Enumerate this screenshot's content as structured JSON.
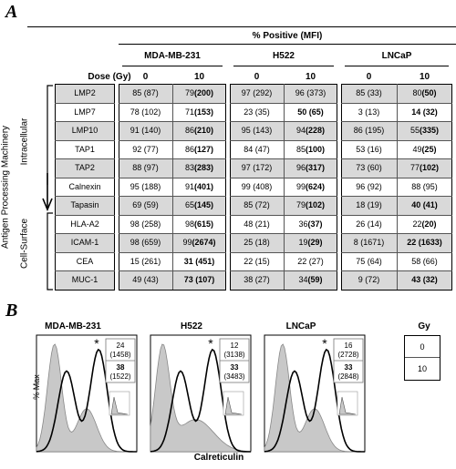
{
  "panel_a": {
    "label": "A",
    "header": "% Positive (MFI)",
    "dose_label": "Dose (Gy)",
    "cell_lines": [
      "MDA-MB-231",
      "H522",
      "LNCaP"
    ],
    "doses": [
      "0",
      "10"
    ],
    "side_label": "Antigen Processing Machinery",
    "group_labels": [
      "Intracellular",
      "Cell-Surface"
    ],
    "rows": [
      {
        "name": "LMP2",
        "shaded": true,
        "cells": [
          [
            "85 (87)",
            ""
          ],
          [
            "79 ",
            "(200)"
          ],
          [
            "97 (292)",
            ""
          ],
          [
            "96 (373)",
            ""
          ],
          [
            "85 (33)",
            ""
          ],
          [
            "80 ",
            "(50)"
          ]
        ]
      },
      {
        "name": "LMP7",
        "shaded": false,
        "cells": [
          [
            "78 (102)",
            ""
          ],
          [
            "71 ",
            "(153)"
          ],
          [
            "23 (35)",
            ""
          ],
          [
            "",
            "50 (65)"
          ],
          [
            "3 (13)",
            ""
          ],
          [
            "",
            "14 (32)"
          ]
        ]
      },
      {
        "name": "LMP10",
        "shaded": true,
        "cells": [
          [
            "91 (140)",
            ""
          ],
          [
            "86 ",
            "(210)"
          ],
          [
            "95 (143)",
            ""
          ],
          [
            "94 ",
            "(228)"
          ],
          [
            "86 (195)",
            ""
          ],
          [
            "55 ",
            "(335)"
          ]
        ]
      },
      {
        "name": "TAP1",
        "shaded": false,
        "cells": [
          [
            "92 (77)",
            ""
          ],
          [
            "86 ",
            "(127)"
          ],
          [
            "84 (47)",
            ""
          ],
          [
            "85 ",
            "(100)"
          ],
          [
            "53 (16)",
            ""
          ],
          [
            "49 ",
            "(25)"
          ]
        ]
      },
      {
        "name": "TAP2",
        "shaded": true,
        "cells": [
          [
            "88 (97)",
            ""
          ],
          [
            "83 ",
            "(283)"
          ],
          [
            "97 (172)",
            ""
          ],
          [
            "96 ",
            "(317)"
          ],
          [
            "73 (60)",
            ""
          ],
          [
            "77 ",
            "(102)"
          ]
        ]
      },
      {
        "name": "Calnexin",
        "shaded": false,
        "cells": [
          [
            "95 (188)",
            ""
          ],
          [
            "91 ",
            "(401)"
          ],
          [
            "99 (408)",
            ""
          ],
          [
            "99 ",
            "(624)"
          ],
          [
            "96 (92)",
            ""
          ],
          [
            "88 (95)",
            ""
          ]
        ]
      },
      {
        "name": "Tapasin",
        "shaded": true,
        "cells": [
          [
            "69 (59)",
            ""
          ],
          [
            "65 ",
            "(145)"
          ],
          [
            "85 (72)",
            ""
          ],
          [
            "79 ",
            "(102)"
          ],
          [
            "18 (19)",
            ""
          ],
          [
            "",
            "40 (41)"
          ]
        ]
      },
      {
        "name": "HLA-A2",
        "shaded": false,
        "cells": [
          [
            "98 (258)",
            ""
          ],
          [
            "98 ",
            "(615)"
          ],
          [
            "48 (21)",
            ""
          ],
          [
            "36 ",
            "(37)"
          ],
          [
            "26 (14)",
            ""
          ],
          [
            "22 ",
            "(20)"
          ]
        ]
      },
      {
        "name": "ICAM-1",
        "shaded": true,
        "cells": [
          [
            "98 (659)",
            ""
          ],
          [
            "99 ",
            "(2674)"
          ],
          [
            "25 (18)",
            ""
          ],
          [
            "19 ",
            "(29)"
          ],
          [
            "8 (1671)",
            ""
          ],
          [
            "",
            "22 (1633)"
          ]
        ]
      },
      {
        "name": "CEA",
        "shaded": false,
        "cells": [
          [
            "15 (261)",
            ""
          ],
          [
            "",
            "31 (451)"
          ],
          [
            "22 (15)",
            ""
          ],
          [
            "22 (27)",
            ""
          ],
          [
            "75 (64)",
            ""
          ],
          [
            "58 (66)",
            ""
          ]
        ]
      },
      {
        "name": "MUC-1",
        "shaded": true,
        "cells": [
          [
            "49 (43)",
            ""
          ],
          [
            "",
            "73 (107)"
          ],
          [
            "38 (27)",
            ""
          ],
          [
            "34 ",
            "(59)"
          ],
          [
            "9 (72)",
            ""
          ],
          [
            "",
            "43 (32)"
          ]
        ]
      }
    ]
  },
  "panel_b": {
    "label": "B",
    "ylabel": "% Max",
    "xlabel": "Calreticulin",
    "gy_header": "Gy",
    "gy_values": [
      "0",
      "10"
    ],
    "asterisk": "*",
    "plots": [
      {
        "title": "MDA-MB-231",
        "v0": "24",
        "m0": "(1458)",
        "v10": "38",
        "m10": "(1522)"
      },
      {
        "title": "H522",
        "v0": "12",
        "m0": "(3138)",
        "v10": "33",
        "m10": "(3483)"
      },
      {
        "title": "LNCaP",
        "v0": "16",
        "m0": "(2728)",
        "v10": "33",
        "m10": "(2848)"
      }
    ]
  }
}
